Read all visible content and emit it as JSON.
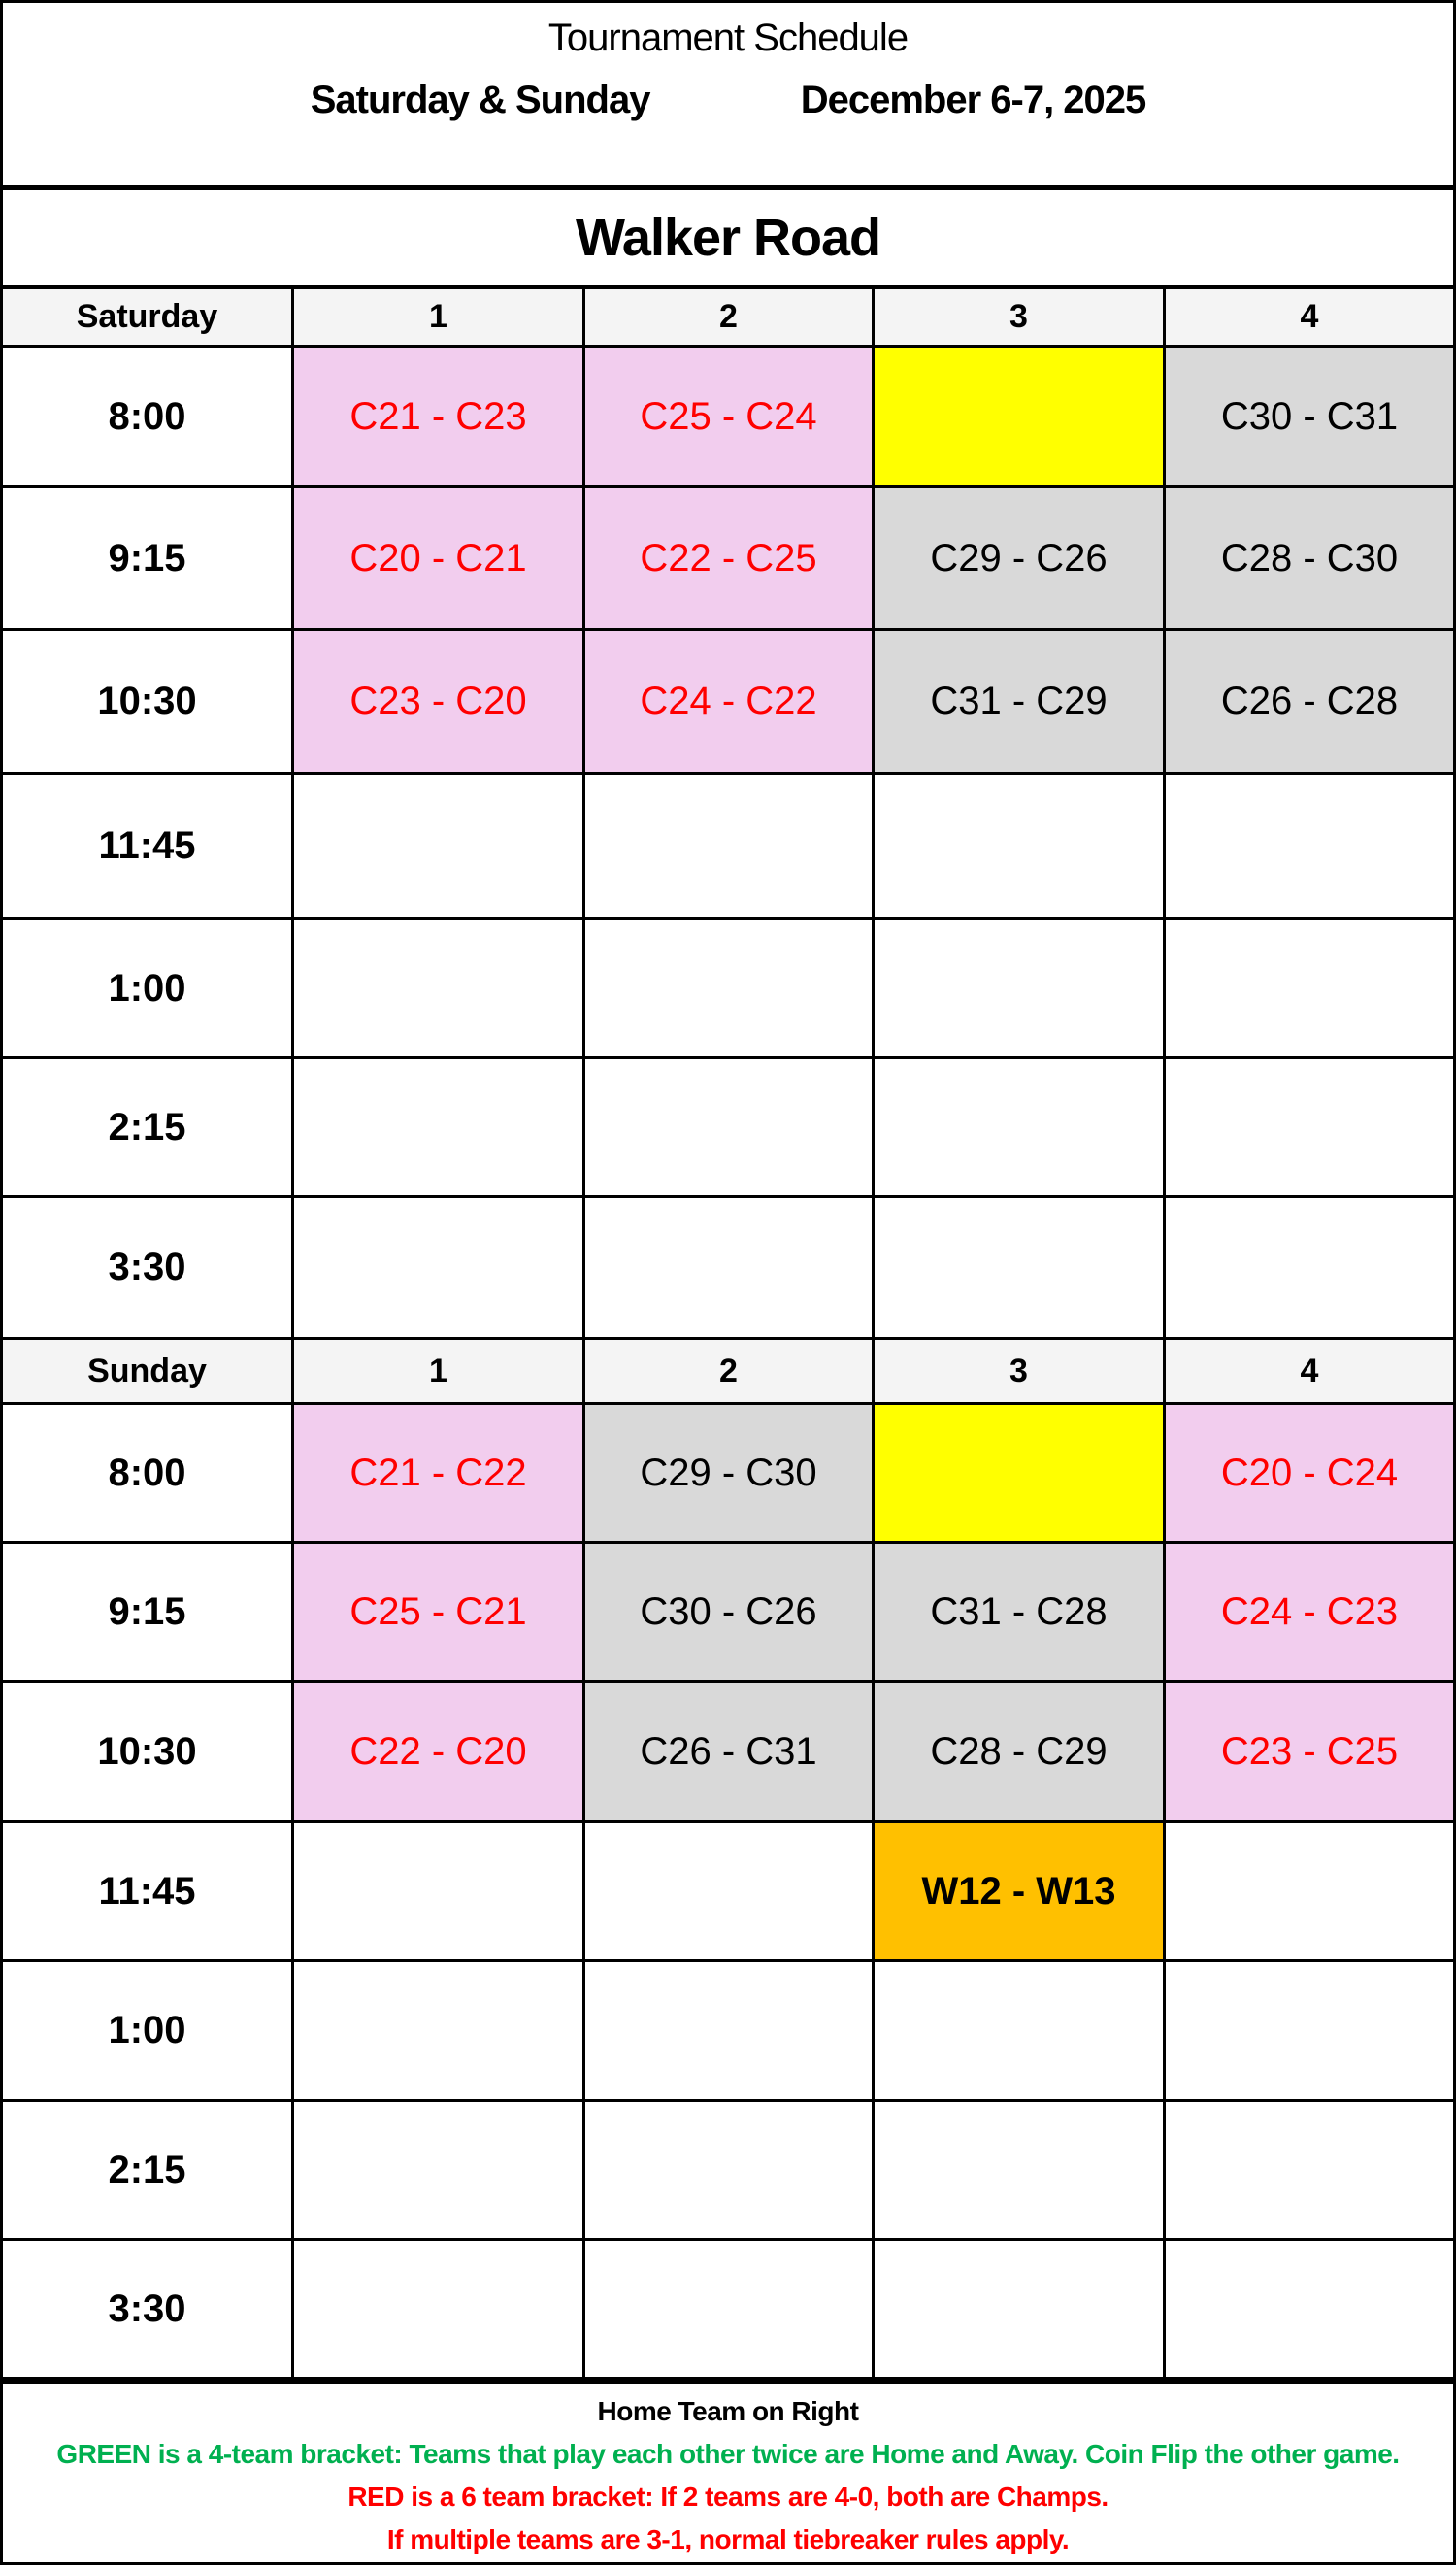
{
  "header": {
    "title": "Tournament Schedule",
    "days": "Saturday & Sunday",
    "dates": "December 6-7, 2025"
  },
  "venue": "Walker Road",
  "colors": {
    "pink": "#f2cdee",
    "gray": "#d9d9d9",
    "yellow": "#ffff00",
    "orange": "#ffc000",
    "red_text": "#ff0000",
    "green_text": "#00b050"
  },
  "days": [
    {
      "label": "Saturday",
      "fields": [
        "1",
        "2",
        "3",
        "4"
      ],
      "rows": [
        {
          "time": "8:00",
          "games": [
            {
              "text": "C21 - C23",
              "fill": "pink"
            },
            {
              "text": "C25 - C24",
              "fill": "pink"
            },
            {
              "text": "",
              "fill": "yellow"
            },
            {
              "text": "C30 - C31",
              "fill": "gray"
            }
          ]
        },
        {
          "time": "9:15",
          "games": [
            {
              "text": "C20 - C21",
              "fill": "pink"
            },
            {
              "text": "C22 - C25",
              "fill": "pink"
            },
            {
              "text": "C29 - C26",
              "fill": "gray"
            },
            {
              "text": "C28 - C30",
              "fill": "gray"
            }
          ]
        },
        {
          "time": "10:30",
          "games": [
            {
              "text": "C23 - C20",
              "fill": "pink"
            },
            {
              "text": "C24 - C22",
              "fill": "pink"
            },
            {
              "text": "C31 - C29",
              "fill": "gray"
            },
            {
              "text": "C26 - C28",
              "fill": "gray"
            }
          ]
        },
        {
          "time": "11:45",
          "games": [
            {
              "text": "",
              "fill": ""
            },
            {
              "text": "",
              "fill": ""
            },
            {
              "text": "",
              "fill": ""
            },
            {
              "text": "",
              "fill": ""
            }
          ]
        },
        {
          "time": "1:00",
          "games": [
            {
              "text": "",
              "fill": ""
            },
            {
              "text": "",
              "fill": ""
            },
            {
              "text": "",
              "fill": ""
            },
            {
              "text": "",
              "fill": ""
            }
          ]
        },
        {
          "time": "2:15",
          "games": [
            {
              "text": "",
              "fill": ""
            },
            {
              "text": "",
              "fill": ""
            },
            {
              "text": "",
              "fill": ""
            },
            {
              "text": "",
              "fill": ""
            }
          ]
        },
        {
          "time": "3:30",
          "games": [
            {
              "text": "",
              "fill": ""
            },
            {
              "text": "",
              "fill": ""
            },
            {
              "text": "",
              "fill": ""
            },
            {
              "text": "",
              "fill": ""
            }
          ]
        }
      ]
    },
    {
      "label": "Sunday",
      "fields": [
        "1",
        "2",
        "3",
        "4"
      ],
      "rows": [
        {
          "time": "8:00",
          "games": [
            {
              "text": "C21 - C22",
              "fill": "pink"
            },
            {
              "text": "C29 - C30",
              "fill": "gray"
            },
            {
              "text": "",
              "fill": "yellow"
            },
            {
              "text": "C20 - C24",
              "fill": "pink"
            }
          ]
        },
        {
          "time": "9:15",
          "games": [
            {
              "text": "C25 - C21",
              "fill": "pink"
            },
            {
              "text": "C30 - C26",
              "fill": "gray"
            },
            {
              "text": "C31 - C28",
              "fill": "gray"
            },
            {
              "text": "C24 - C23",
              "fill": "pink"
            }
          ]
        },
        {
          "time": "10:30",
          "games": [
            {
              "text": "C22 - C20",
              "fill": "pink"
            },
            {
              "text": "C26 - C31",
              "fill": "gray"
            },
            {
              "text": "C28 - C29",
              "fill": "gray"
            },
            {
              "text": "C23 - C25",
              "fill": "pink"
            }
          ]
        },
        {
          "time": "11:45",
          "games": [
            {
              "text": "",
              "fill": ""
            },
            {
              "text": "",
              "fill": ""
            },
            {
              "text": "W12 - W13",
              "fill": "orange"
            },
            {
              "text": "",
              "fill": ""
            }
          ]
        },
        {
          "time": "1:00",
          "games": [
            {
              "text": "",
              "fill": ""
            },
            {
              "text": "",
              "fill": ""
            },
            {
              "text": "",
              "fill": ""
            },
            {
              "text": "",
              "fill": ""
            }
          ]
        },
        {
          "time": "2:15",
          "games": [
            {
              "text": "",
              "fill": ""
            },
            {
              "text": "",
              "fill": ""
            },
            {
              "text": "",
              "fill": ""
            },
            {
              "text": "",
              "fill": ""
            }
          ]
        },
        {
          "time": "3:30",
          "games": [
            {
              "text": "",
              "fill": ""
            },
            {
              "text": "",
              "fill": ""
            },
            {
              "text": "",
              "fill": ""
            },
            {
              "text": "",
              "fill": ""
            }
          ]
        }
      ]
    }
  ],
  "footer": {
    "home_note": "Home Team on Right",
    "green_note": "GREEN is a 4-team bracket:  Teams that play each other twice are Home and Away.  Coin Flip the other game.",
    "red_note_1": "RED is a 6 team bracket:  If 2 teams are 4-0, both are Champs.",
    "red_note_2": "If multiple teams are 3-1, normal tiebreaker rules apply."
  }
}
